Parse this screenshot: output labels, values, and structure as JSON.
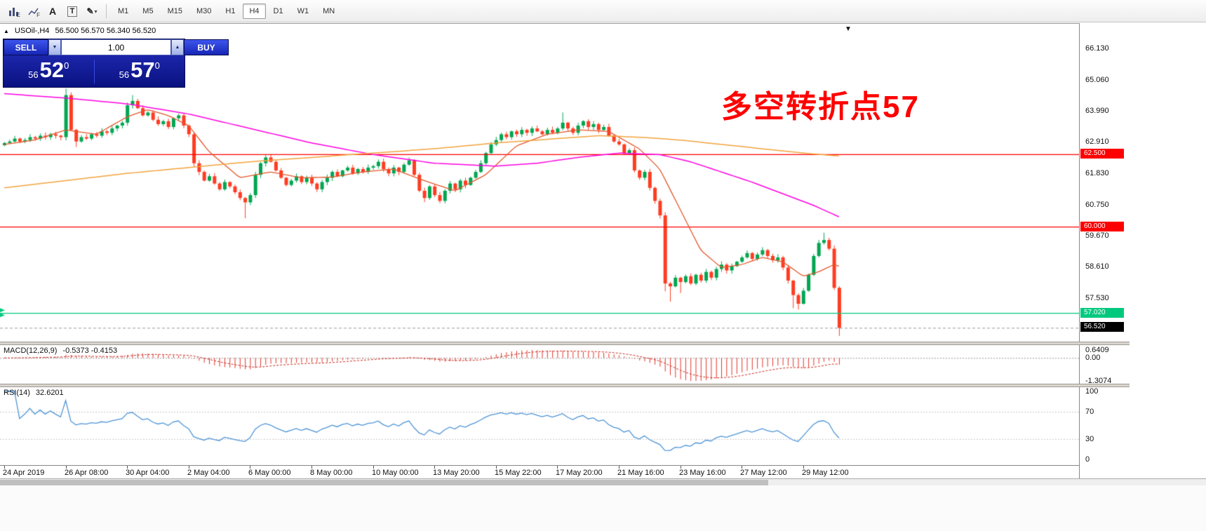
{
  "icons": {
    "triangle_up": "▲",
    "triangle_down": "▼",
    "caret": "▾",
    "pencil": "✎"
  },
  "toolbar": {
    "left_icons": [
      {
        "name": "chart-style-e-icon",
        "glyph": "E"
      },
      {
        "name": "chart-style-f-icon",
        "glyph": "F"
      },
      {
        "name": "cursor-a-icon",
        "glyph": "A"
      },
      {
        "name": "text-tool-icon",
        "glyph": "T"
      },
      {
        "name": "objects-icon",
        "glyph": "✎"
      }
    ],
    "timeframes": [
      "M1",
      "M5",
      "M15",
      "M30",
      "H1",
      "H4",
      "D1",
      "W1",
      "MN"
    ],
    "active_timeframe": "H4"
  },
  "header": {
    "symbol_title": "USOil-,H4",
    "ohlc": "56.500 56.570 56.340 56.520"
  },
  "trade_panel": {
    "sell_label": "SELL",
    "buy_label": "BUY",
    "volume": "1.00",
    "sell_price": {
      "small": "56",
      "big": "52",
      "sup": "0"
    },
    "buy_price": {
      "small": "56",
      "big": "57",
      "sup": "0"
    }
  },
  "annotation": {
    "text": "多空转折点57",
    "color": "#FF0000"
  },
  "chart_data": {
    "type": "candlestick",
    "symbol": "USOil",
    "timeframe": "H4",
    "price_max": 67.01,
    "price_min": 56.02,
    "price_axis_ticks": [
      "66.130",
      "65.060",
      "63.990",
      "62.910",
      "61.830",
      "60.750",
      "59.670",
      "58.610",
      "57.530"
    ],
    "x_labels": [
      "24 Apr 2019",
      "26 Apr 08:00",
      "30 Apr 04:00",
      "2 May 04:00",
      "6 May 00:00",
      "8 May 00:00",
      "10 May 00:00",
      "13 May 20:00",
      "15 May 22:00",
      "17 May 20:00",
      "21 May 16:00",
      "23 May 16:00",
      "27 May 12:00",
      "29 May 12:00"
    ],
    "candles_per_label": 12,
    "first_open": 62.82,
    "closes": [
      62.9,
      62.95,
      63.05,
      62.95,
      63.0,
      63.1,
      63.05,
      63.15,
      63.1,
      63.2,
      63.15,
      63.1,
      64.55,
      63.35,
      62.95,
      63.1,
      63.05,
      63.2,
      63.15,
      63.3,
      63.25,
      63.4,
      63.5,
      63.6,
      64.2,
      64.35,
      64.1,
      63.85,
      63.95,
      63.7,
      63.55,
      63.65,
      63.45,
      63.75,
      63.85,
      63.5,
      63.2,
      62.2,
      61.9,
      61.6,
      61.75,
      61.5,
      61.3,
      61.55,
      61.4,
      61.2,
      61.0,
      60.85,
      61.1,
      61.8,
      62.2,
      62.4,
      62.25,
      61.95,
      61.7,
      61.45,
      61.6,
      61.75,
      61.55,
      61.7,
      61.5,
      61.3,
      61.55,
      61.7,
      61.9,
      61.75,
      61.95,
      62.05,
      61.85,
      62.0,
      61.9,
      62.05,
      62.1,
      62.25,
      62.0,
      61.85,
      62.05,
      61.9,
      62.15,
      62.3,
      61.8,
      61.25,
      61.0,
      61.4,
      61.1,
      60.9,
      61.25,
      61.5,
      61.3,
      61.6,
      61.45,
      61.7,
      61.9,
      62.2,
      62.55,
      62.85,
      63.0,
      63.2,
      63.1,
      63.3,
      63.2,
      63.35,
      63.25,
      63.4,
      63.3,
      63.2,
      63.35,
      63.25,
      63.4,
      63.6,
      63.4,
      63.25,
      63.5,
      63.65,
      63.45,
      63.55,
      63.35,
      63.45,
      63.15,
      62.95,
      62.85,
      62.55,
      62.65,
      61.95,
      61.7,
      61.9,
      61.35,
      60.9,
      60.4,
      58.05,
      57.95,
      58.25,
      58.1,
      58.3,
      58.05,
      58.35,
      58.15,
      58.45,
      58.25,
      58.55,
      58.7,
      58.5,
      58.65,
      58.8,
      58.95,
      59.1,
      58.9,
      59.05,
      59.2,
      59.0,
      58.85,
      58.95,
      58.6,
      58.15,
      57.65,
      57.35,
      57.8,
      58.35,
      59.0,
      59.45,
      59.55,
      59.25,
      57.9,
      56.52
    ],
    "wick_overrides": {
      "12": {
        "high": 64.78
      },
      "14": {
        "low": 62.76
      },
      "25": {
        "high": 64.55
      },
      "47": {
        "low": 60.3
      },
      "82": {
        "low": 60.86
      },
      "109": {
        "high": 63.95
      },
      "129": {
        "low": 57.78
      },
      "130": {
        "low": 57.42
      },
      "132": {
        "low": 57.72
      },
      "154": {
        "low": 57.2
      },
      "155": {
        "low": 57.15
      },
      "160": {
        "high": 59.8
      },
      "163": {
        "low": 56.24
      }
    },
    "colors": {
      "bull": "#00A651",
      "bear": "#FF3C22"
    },
    "levels": [
      {
        "value": 62.5,
        "label": "62.500",
        "color": "#FF0000"
      },
      {
        "value": 60.0,
        "label": "60.000",
        "color": "#FF0000"
      },
      {
        "value": 57.02,
        "label": "57.020",
        "color": "#00C97E"
      }
    ],
    "current_price": {
      "value": 56.52,
      "label": "56.520",
      "color": "#000000"
    },
    "moving_averages": [
      {
        "name": "ma-fast",
        "color": "#E2572B",
        "width": 1.3,
        "points": [
          [
            0,
            62.85
          ],
          [
            6,
            63.0
          ],
          [
            12,
            63.35
          ],
          [
            18,
            63.2
          ],
          [
            24,
            63.8
          ],
          [
            28,
            64.05
          ],
          [
            32,
            63.85
          ],
          [
            36,
            63.5
          ],
          [
            40,
            62.6
          ],
          [
            46,
            61.7
          ],
          [
            52,
            61.9
          ],
          [
            58,
            61.7
          ],
          [
            64,
            61.72
          ],
          [
            70,
            61.9
          ],
          [
            76,
            62.0
          ],
          [
            82,
            61.6
          ],
          [
            88,
            61.25
          ],
          [
            94,
            61.8
          ],
          [
            100,
            62.8
          ],
          [
            106,
            63.2
          ],
          [
            112,
            63.35
          ],
          [
            118,
            63.3
          ],
          [
            124,
            62.7
          ],
          [
            128,
            62.0
          ],
          [
            132,
            60.6
          ],
          [
            136,
            59.2
          ],
          [
            140,
            58.6
          ],
          [
            144,
            58.7
          ],
          [
            148,
            58.95
          ],
          [
            152,
            58.8
          ],
          [
            156,
            58.3
          ],
          [
            159,
            58.45
          ],
          [
            162,
            58.7
          ],
          [
            163,
            58.65
          ]
        ]
      },
      {
        "name": "ma-mid",
        "color": "#FF00E0",
        "width": 1.5,
        "points": [
          [
            0,
            64.6
          ],
          [
            12,
            64.45
          ],
          [
            24,
            64.25
          ],
          [
            36,
            63.9
          ],
          [
            48,
            63.4
          ],
          [
            60,
            62.9
          ],
          [
            72,
            62.5
          ],
          [
            84,
            62.2
          ],
          [
            96,
            62.1
          ],
          [
            104,
            62.2
          ],
          [
            112,
            62.4
          ],
          [
            120,
            62.55
          ],
          [
            128,
            62.5
          ],
          [
            134,
            62.25
          ],
          [
            140,
            61.9
          ],
          [
            146,
            61.55
          ],
          [
            152,
            61.15
          ],
          [
            158,
            60.75
          ],
          [
            163,
            60.35
          ]
        ]
      },
      {
        "name": "ma-slow",
        "color": "#F2A33C",
        "width": 1.5,
        "points": [
          [
            0,
            61.35
          ],
          [
            12,
            61.6
          ],
          [
            24,
            61.85
          ],
          [
            36,
            62.05
          ],
          [
            48,
            62.25
          ],
          [
            60,
            62.4
          ],
          [
            72,
            62.55
          ],
          [
            84,
            62.7
          ],
          [
            96,
            62.9
          ],
          [
            108,
            63.05
          ],
          [
            116,
            63.15
          ],
          [
            124,
            63.1
          ],
          [
            132,
            63.0
          ],
          [
            140,
            62.85
          ],
          [
            148,
            62.7
          ],
          [
            156,
            62.55
          ],
          [
            163,
            62.45
          ]
        ]
      }
    ],
    "indicators": {
      "macd": {
        "label": "MACD(12,26,9)",
        "values_text": "-0.5373 -0.4153",
        "params": [
          12,
          26,
          9
        ],
        "axis_ticks": [
          "0.6409",
          "0.00",
          "-1.3074"
        ],
        "color": "#E53528",
        "signal_color": "#C62B20"
      },
      "rsi": {
        "label": "RSI(14)",
        "value_text": "32.6201",
        "period": 14,
        "levels": [
          70,
          30
        ],
        "axis_ticks": [
          "100",
          "70",
          "30",
          "0"
        ],
        "color": "#4D94D6"
      }
    }
  }
}
